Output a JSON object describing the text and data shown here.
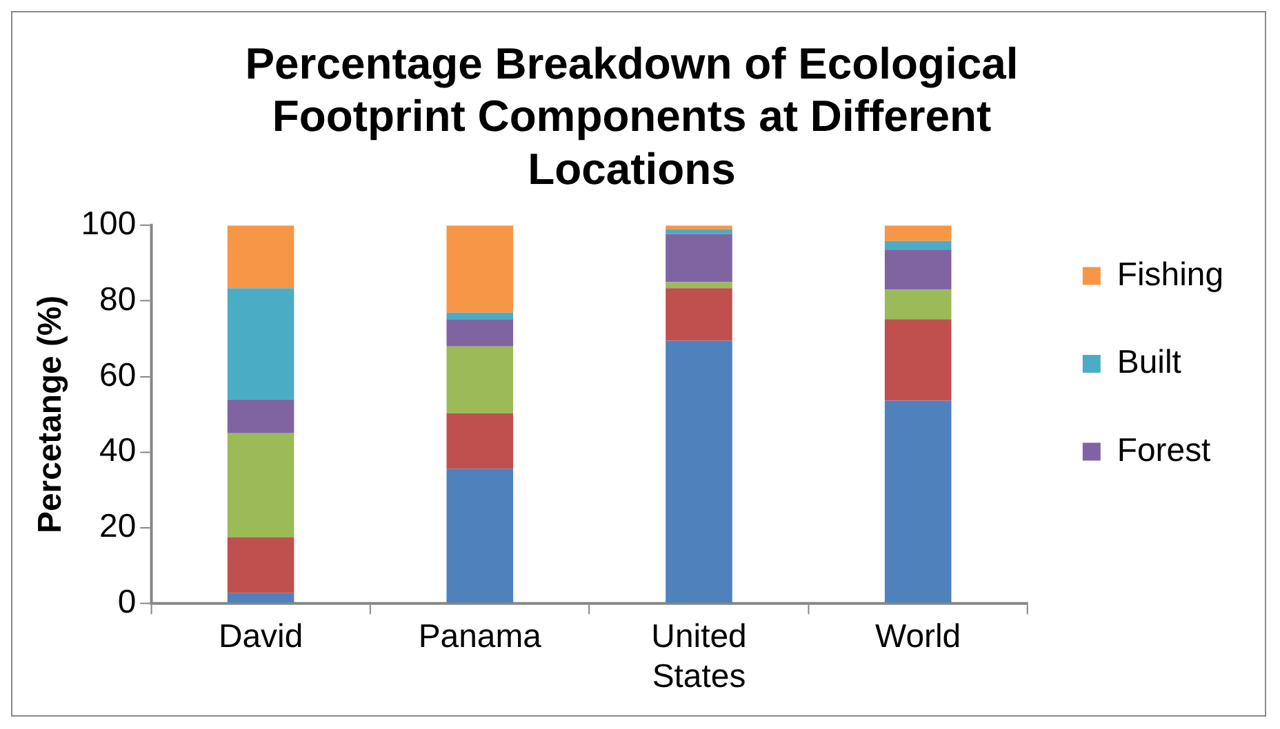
{
  "chart_data": {
    "type": "bar",
    "title": "Percentage Breakdown of Ecological Footprint Components at Different Locations",
    "ylabel": "Percetange (%)",
    "categories": [
      "David",
      "Panama",
      "United States",
      "World"
    ],
    "stacked": true,
    "ylim": [
      0,
      100
    ],
    "yticks": [
      0,
      20,
      40,
      60,
      80,
      100
    ],
    "grid": false,
    "legend": "right",
    "series": [
      {
        "color": "#4f81bd",
        "values": [
          2.7,
          35.6,
          69.5,
          53.6
        ]
      },
      {
        "color": "#c0504d",
        "values": [
          14.7,
          14.7,
          13.9,
          21.6
        ]
      },
      {
        "color": "#9bbb59",
        "values": [
          27.6,
          17.7,
          1.6,
          7.8
        ]
      },
      {
        "name": "Forest",
        "color": "#8064a2",
        "values": [
          9.0,
          7.2,
          12.7,
          10.6
        ]
      },
      {
        "name": "Built",
        "color": "#4bacc6",
        "values": [
          29.4,
          1.7,
          1.3,
          2.3
        ]
      },
      {
        "name": "Fishing",
        "color": "#f79646",
        "values": [
          16.6,
          23.1,
          1.0,
          4.1
        ]
      }
    ]
  }
}
